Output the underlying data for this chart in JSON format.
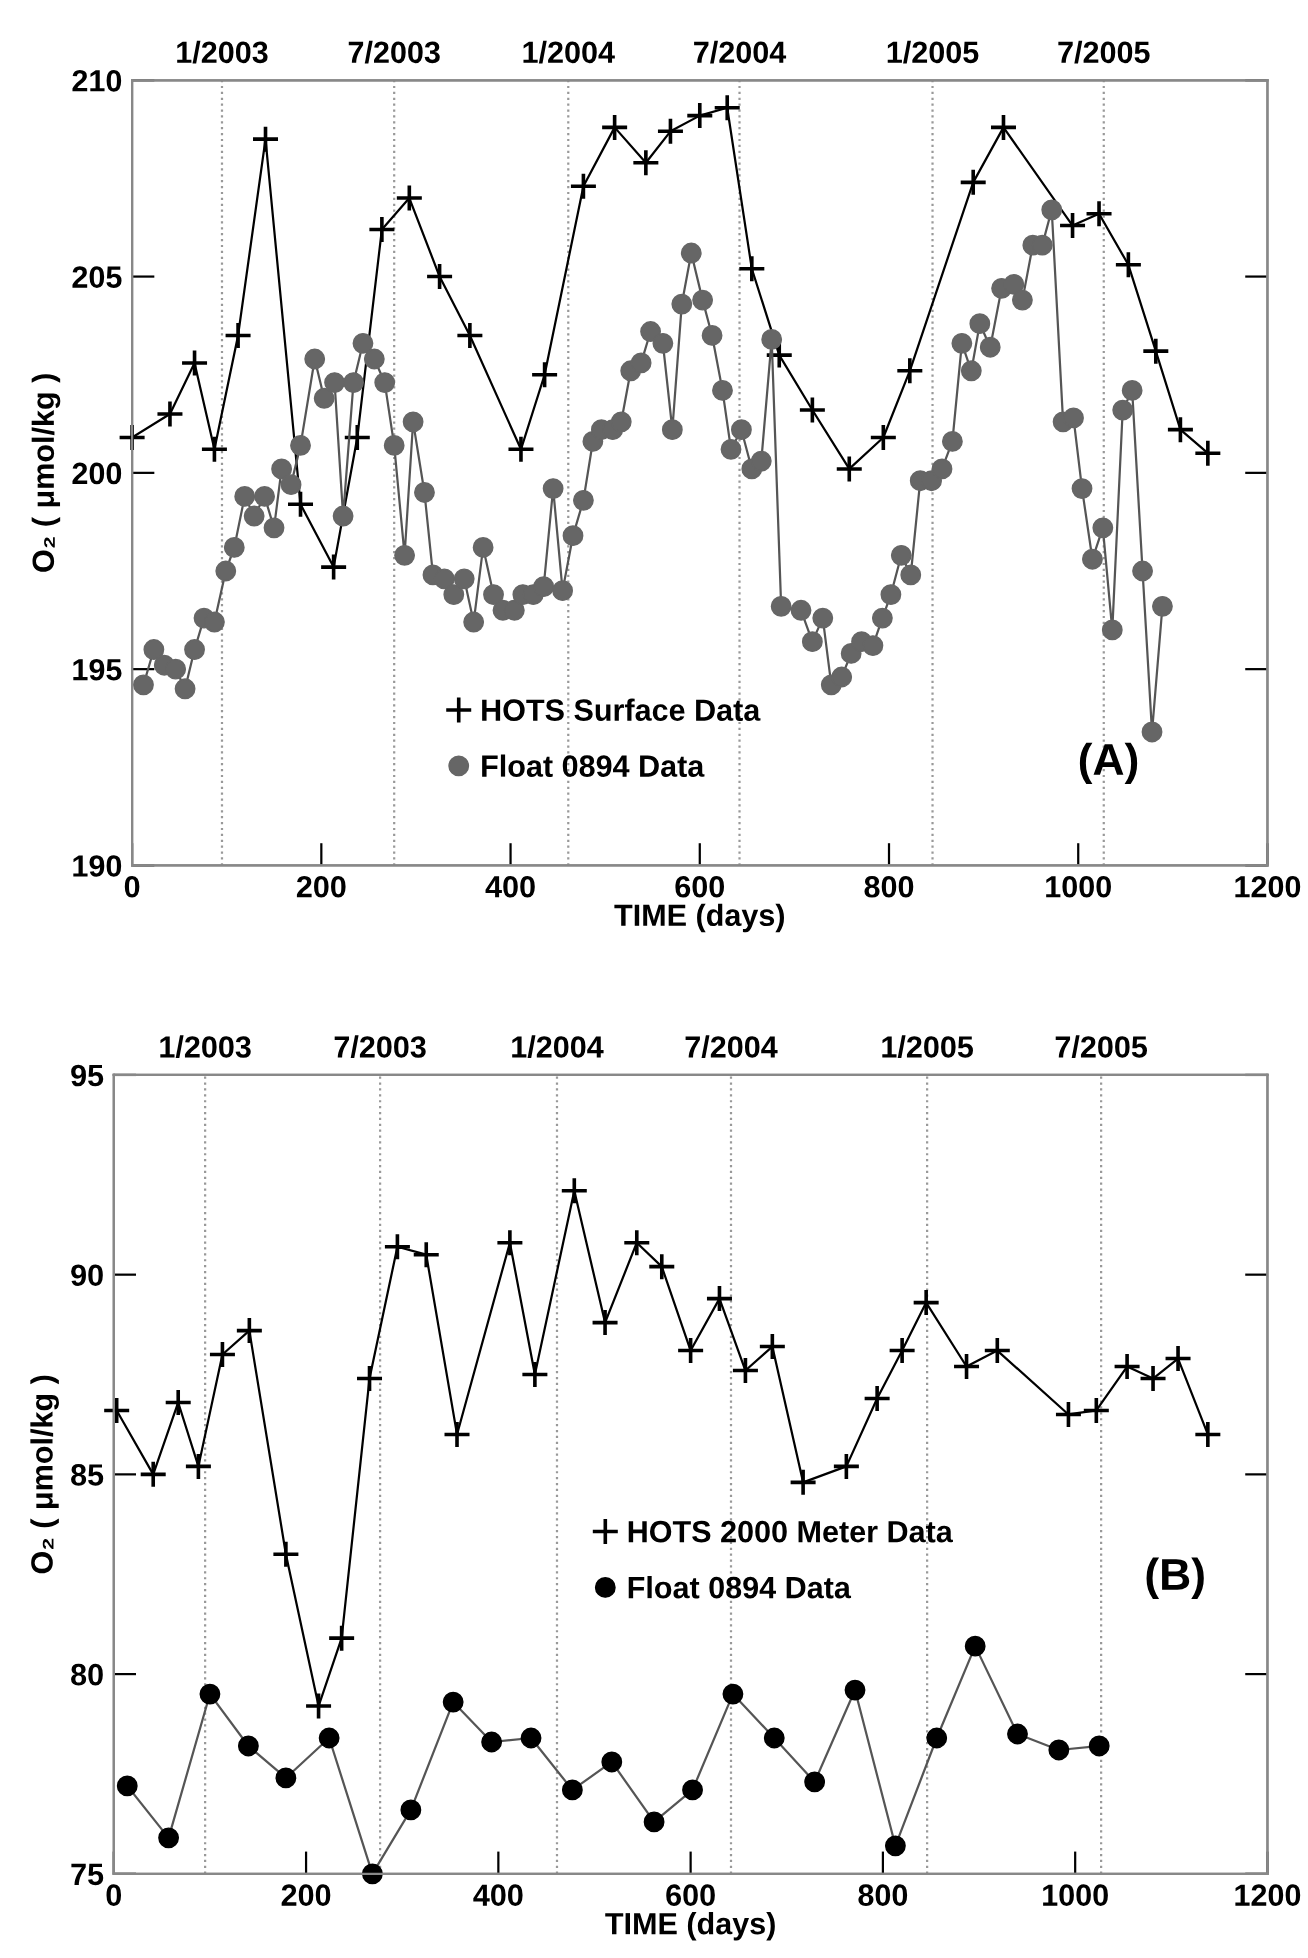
{
  "chart_data": [
    {
      "type": "line",
      "xlabel": "TIME (days)",
      "ylabel": "O₂ ( μmol/kg )",
      "xlim": [
        0,
        1200
      ],
      "xticks": [
        0,
        200,
        400,
        600,
        800,
        1000,
        1200
      ],
      "ylim": [
        190,
        210
      ],
      "yticks": [
        190,
        195,
        200,
        205,
        210
      ],
      "x2lim": [
        "2002-09-28",
        "2006-01-10"
      ],
      "x2ticks": [
        {
          "value": "2003-01-01",
          "label": "1/2003"
        },
        {
          "value": "2003-07-02",
          "label": "7/2003"
        },
        {
          "value": "2004-01-02",
          "label": "1/2004"
        },
        {
          "value": "2004-07-01",
          "label": "7/2004"
        },
        {
          "value": "2005-01-21",
          "label": "1/2005"
        },
        {
          "value": "2005-07-21",
          "label": "7/2005"
        }
      ],
      "ref_lines": [
        {
          "axis": "x",
          "value": 95,
          "color": "#999999",
          "line_style": "dotted"
        },
        {
          "axis": "x",
          "value": 277,
          "color": "#999999",
          "line_style": "dotted"
        },
        {
          "axis": "x",
          "value": 461,
          "color": "#999999",
          "line_style": "dotted"
        },
        {
          "axis": "x",
          "value": 642,
          "color": "#999999",
          "line_style": "dotted"
        },
        {
          "axis": "x",
          "value": 846,
          "color": "#999999",
          "line_style": "dotted"
        },
        {
          "axis": "x",
          "value": 1027,
          "color": "#999999",
          "line_style": "dotted"
        }
      ],
      "annotations": [
        "(A)"
      ],
      "legend": "bottom left",
      "grid": false,
      "series": [
        {
          "name": "HOTS Surface Data",
          "color": "#000000",
          "marker": "cross",
          "x": [
            0,
            40,
            66,
            87,
            112,
            141,
            178,
            213,
            238,
            264,
            293,
            325,
            357,
            411,
            436,
            477,
            510,
            543,
            569,
            600,
            629,
            655,
            684,
            719,
            758,
            794,
            822,
            889,
            921,
            994,
            1022,
            1053,
            1082,
            1108,
            1137
          ],
          "values": [
            200.9,
            201.5,
            202.8,
            200.6,
            203.5,
            208.5,
            199.2,
            197.6,
            200.9,
            206.2,
            207.0,
            205.0,
            203.5,
            200.6,
            202.5,
            207.3,
            208.8,
            207.9,
            208.7,
            209.1,
            209.3,
            205.2,
            203.0,
            201.6,
            200.1,
            200.9,
            202.6,
            207.4,
            208.8,
            206.3,
            206.6,
            205.3,
            203.1,
            201.1,
            200.5
          ]
        },
        {
          "name": "Float 0894 Data",
          "color": "#666666",
          "marker": "circle",
          "x": [
            12,
            23,
            34,
            46,
            56,
            66,
            76,
            87,
            99,
            108,
            119,
            129,
            140,
            150,
            158,
            168,
            178,
            193,
            203,
            214,
            223,
            234,
            244,
            256,
            267,
            277,
            288,
            297,
            309,
            318,
            330,
            340,
            351,
            361,
            371,
            382,
            392,
            404,
            413,
            424,
            435,
            445,
            455,
            466,
            477,
            487,
            496,
            508,
            517,
            527,
            538,
            548,
            561,
            571,
            581,
            591,
            603,
            613,
            624,
            633,
            644,
            655,
            665,
            676,
            686,
            707,
            719,
            730,
            739,
            750,
            760,
            771,
            783,
            793,
            802,
            813,
            823,
            833,
            845,
            856,
            867,
            877,
            887,
            896,
            907,
            919,
            932,
            941,
            952,
            962,
            972,
            984,
            995,
            1004,
            1015,
            1026,
            1036,
            1047,
            1057,
            1068,
            1078,
            1089
          ],
          "values": [
            194.6,
            195.5,
            195.1,
            195.0,
            194.5,
            195.5,
            196.3,
            196.2,
            197.5,
            198.1,
            199.4,
            198.9,
            199.4,
            198.6,
            200.1,
            199.7,
            200.7,
            202.9,
            201.9,
            202.3,
            198.9,
            202.3,
            203.3,
            202.9,
            202.3,
            200.7,
            197.9,
            201.3,
            199.5,
            197.4,
            197.3,
            196.9,
            197.3,
            196.2,
            198.1,
            196.9,
            196.5,
            196.5,
            196.9,
            196.9,
            197.1,
            199.6,
            197.0,
            198.4,
            199.3,
            200.8,
            201.1,
            201.1,
            201.3,
            202.6,
            202.8,
            203.6,
            203.3,
            201.1,
            204.3,
            205.6,
            204.4,
            203.5,
            202.1,
            200.6,
            201.1,
            200.1,
            200.3,
            203.4,
            196.6,
            196.5,
            195.7,
            196.3,
            194.6,
            194.8,
            195.4,
            195.7,
            195.6,
            196.3,
            196.9,
            197.9,
            197.4,
            199.8,
            199.8,
            200.1,
            200.8,
            203.3,
            202.6,
            203.8,
            203.2,
            204.7,
            204.8,
            204.4,
            205.8,
            205.8,
            206.7,
            201.3,
            201.4,
            199.6,
            197.8,
            198.6,
            196.0,
            201.6,
            202.1,
            197.5,
            193.4,
            196.6
          ]
        }
      ]
    },
    {
      "type": "line",
      "xlabel": "TIME (days)",
      "ylabel": "O₂ ( μmol/kg )",
      "xlim": [
        0,
        1200
      ],
      "xticks": [
        0,
        200,
        400,
        600,
        800,
        1000,
        1200
      ],
      "ylim": [
        75,
        95
      ],
      "yticks": [
        75,
        80,
        85,
        90,
        95
      ],
      "x2lim": [
        "2002-09-28",
        "2006-01-10"
      ],
      "x2ticks": [
        {
          "value": "2003-01-01",
          "label": "1/2003"
        },
        {
          "value": "2003-07-02",
          "label": "7/2003"
        },
        {
          "value": "2004-01-02",
          "label": "1/2004"
        },
        {
          "value": "2004-07-01",
          "label": "7/2004"
        },
        {
          "value": "2005-01-21",
          "label": "1/2005"
        },
        {
          "value": "2005-07-21",
          "label": "7/2005"
        }
      ],
      "ref_lines": [
        {
          "axis": "x",
          "value": 95,
          "color": "#999999",
          "line_style": "dotted"
        },
        {
          "axis": "x",
          "value": 277,
          "color": "#999999",
          "line_style": "dotted"
        },
        {
          "axis": "x",
          "value": 461,
          "color": "#999999",
          "line_style": "dotted"
        },
        {
          "axis": "x",
          "value": 642,
          "color": "#999999",
          "line_style": "dotted"
        },
        {
          "axis": "x",
          "value": 846,
          "color": "#999999",
          "line_style": "dotted"
        },
        {
          "axis": "x",
          "value": 1027,
          "color": "#999999",
          "line_style": "dotted"
        }
      ],
      "annotations": [
        "(B)"
      ],
      "legend": "center",
      "grid": false,
      "series": [
        {
          "name": "HOTS 2000 Meter Data",
          "color": "#000000",
          "marker": "cross",
          "x": [
            3,
            41,
            67,
            88,
            113,
            141,
            179,
            213,
            237,
            266,
            295,
            325,
            357,
            412,
            438,
            479,
            511,
            544,
            570,
            600,
            630,
            657,
            685,
            717,
            762,
            794,
            820,
            845,
            887,
            919,
            993,
            1022,
            1054,
            1081,
            1107,
            1138
          ],
          "values": [
            86.6,
            85.0,
            86.8,
            85.2,
            88.0,
            88.6,
            83.0,
            79.2,
            80.9,
            87.4,
            90.7,
            90.5,
            86.0,
            90.8,
            87.5,
            92.1,
            88.8,
            90.8,
            90.2,
            88.1,
            89.4,
            87.6,
            88.2,
            84.8,
            85.2,
            86.9,
            88.1,
            89.3,
            87.7,
            88.1,
            86.5,
            86.6,
            87.7,
            87.4,
            87.9,
            86.0
          ]
        },
        {
          "name": "Float 0894 Data",
          "color": "#000000",
          "marker": "circle",
          "x": [
            14,
            57,
            100,
            140,
            179,
            224,
            269,
            309,
            353,
            393,
            434,
            477,
            518,
            562,
            602,
            644,
            687,
            729,
            771,
            813,
            856,
            896,
            940,
            983,
            1025
          ],
          "values": [
            77.2,
            75.9,
            79.5,
            78.2,
            77.4,
            78.4,
            75.0,
            76.6,
            79.3,
            78.3,
            78.4,
            77.1,
            77.8,
            76.3,
            77.1,
            79.5,
            78.4,
            77.3,
            79.6,
            75.7,
            78.4,
            80.7,
            78.5,
            78.1,
            78.2
          ]
        }
      ]
    }
  ]
}
